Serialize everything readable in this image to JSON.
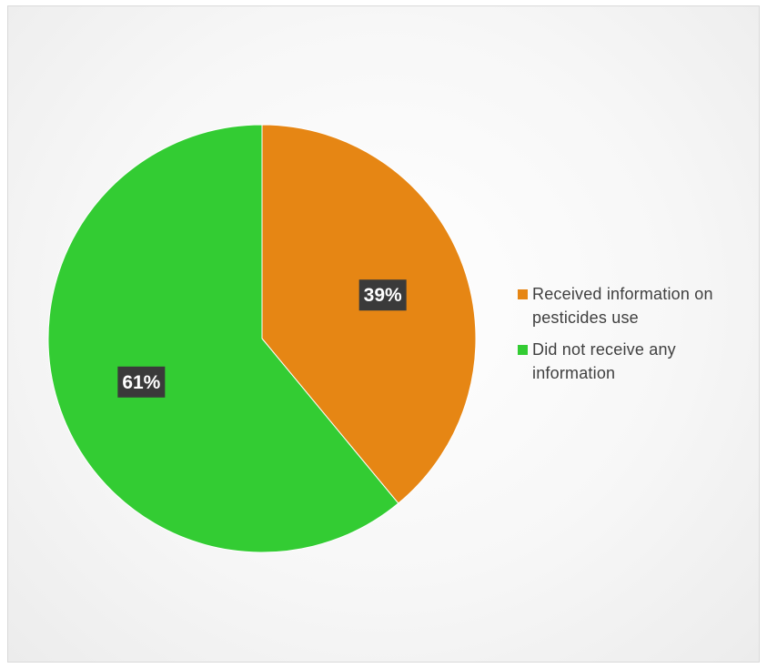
{
  "chart_data": {
    "type": "pie",
    "title": "",
    "categories": [
      "Received information on pesticides use",
      "Did not receive any information"
    ],
    "values": [
      39,
      61
    ],
    "data_labels": [
      "39%",
      "61%"
    ],
    "colors": [
      "#E68614",
      "#33CC33"
    ],
    "start_angle_deg": 0,
    "direction": "clockwise",
    "legend_position": "right"
  },
  "legend": {
    "items": [
      {
        "label": "Received information on pesticides use",
        "color": "#E68614"
      },
      {
        "label": "Did not receive any information",
        "color": "#33CC33"
      }
    ]
  }
}
